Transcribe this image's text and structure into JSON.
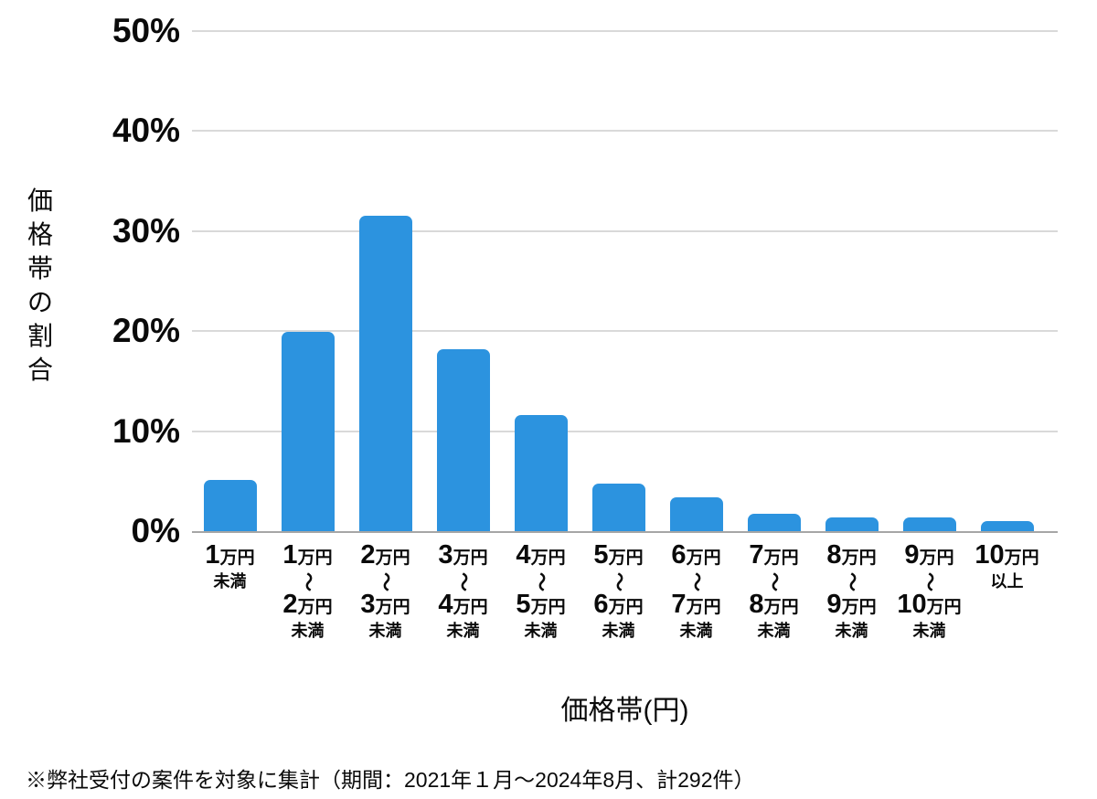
{
  "page": {
    "background": "#ffffff"
  },
  "colors": {
    "bar": "#2c93df",
    "gridline": "#d9d9d9",
    "axis_line": "#a6a6a6",
    "text": "#0a0a0a"
  },
  "y_axis": {
    "title": "価格帯の割合",
    "tick_labels": [
      "0%",
      "10%",
      "20%",
      "30%",
      "40%",
      "50%"
    ],
    "tick_values": [
      0,
      10,
      20,
      30,
      40,
      50
    ]
  },
  "x_axis": {
    "title": "価格帯(円)"
  },
  "footnote": "※弊社受付の案件を対象に集計（期間：2021年１月〜2024年8月、計292件）",
  "chart_data": {
    "type": "bar",
    "title": "",
    "xlabel": "価格帯(円)",
    "ylabel": "価格帯の割合",
    "ylim": [
      0,
      50
    ],
    "ytick_interval": 10,
    "grid": true,
    "legend": false,
    "bar_color": "#2c93df",
    "categories": [
      "1万円未満",
      "1万円〜2万円未満",
      "2万円〜3万円未満",
      "3万円〜4万円未満",
      "4万円〜5万円未満",
      "5万円〜6万円未満",
      "6万円〜7万円未満",
      "7万円〜8万円未満",
      "8万円〜9万円未満",
      "9万円〜10万円未満",
      "10万円以上"
    ],
    "values": [
      5.1,
      19.9,
      31.5,
      18.2,
      11.6,
      4.8,
      3.4,
      1.7,
      1.4,
      1.4,
      1.0
    ],
    "category_labels": [
      {
        "top_num": "1",
        "top_unit": "万円",
        "suffix": "未満"
      },
      {
        "top_num": "1",
        "top_unit": "万円",
        "tilde": "〜",
        "bottom_num": "2",
        "bottom_unit": "万円",
        "suffix": "未満"
      },
      {
        "top_num": "2",
        "top_unit": "万円",
        "tilde": "〜",
        "bottom_num": "3",
        "bottom_unit": "万円",
        "suffix": "未満"
      },
      {
        "top_num": "3",
        "top_unit": "万円",
        "tilde": "〜",
        "bottom_num": "4",
        "bottom_unit": "万円",
        "suffix": "未満"
      },
      {
        "top_num": "4",
        "top_unit": "万円",
        "tilde": "〜",
        "bottom_num": "5",
        "bottom_unit": "万円",
        "suffix": "未満"
      },
      {
        "top_num": "5",
        "top_unit": "万円",
        "tilde": "〜",
        "bottom_num": "6",
        "bottom_unit": "万円",
        "suffix": "未満"
      },
      {
        "top_num": "6",
        "top_unit": "万円",
        "tilde": "〜",
        "bottom_num": "7",
        "bottom_unit": "万円",
        "suffix": "未満"
      },
      {
        "top_num": "7",
        "top_unit": "万円",
        "tilde": "〜",
        "bottom_num": "8",
        "bottom_unit": "万円",
        "suffix": "未満"
      },
      {
        "top_num": "8",
        "top_unit": "万円",
        "tilde": "〜",
        "bottom_num": "9",
        "bottom_unit": "万円",
        "suffix": "未満"
      },
      {
        "top_num": "9",
        "top_unit": "万円",
        "tilde": "〜",
        "bottom_num": "10",
        "bottom_unit": "万円",
        "suffix": "未満"
      },
      {
        "top_num": "10",
        "top_unit": "万円",
        "suffix": "以上"
      }
    ]
  }
}
